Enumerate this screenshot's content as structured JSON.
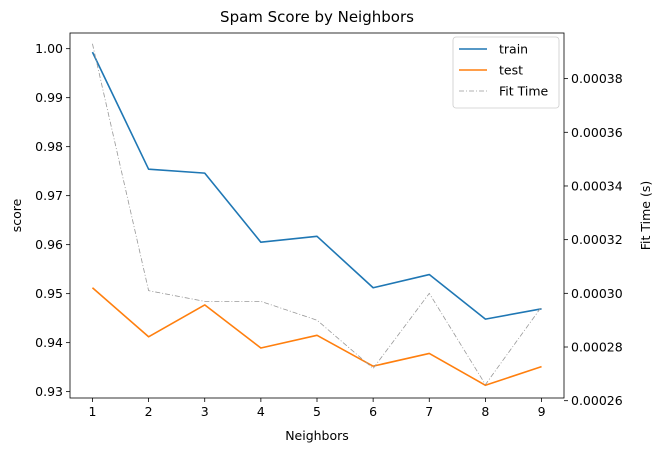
{
  "chart_data": {
    "type": "line",
    "title": "Spam Score by Neighbors",
    "xlabel": "Neighbors",
    "ylabel": "score",
    "y2label": "Fit Time (s)",
    "x": [
      1,
      2,
      3,
      4,
      5,
      6,
      7,
      8,
      9
    ],
    "xlim": [
      0.6,
      9.4
    ],
    "ylim": [
      0.9287,
      1.0032
    ],
    "y2lim": [
      0.000261,
      0.000397
    ],
    "xticks": [
      "1",
      "2",
      "3",
      "4",
      "5",
      "6",
      "7",
      "8",
      "9"
    ],
    "yticks": [
      0.93,
      0.94,
      0.95,
      0.96,
      0.97,
      0.98,
      0.99,
      1.0
    ],
    "ytick_labels": [
      "0.93",
      "0.94",
      "0.95",
      "0.96",
      "0.97",
      "0.98",
      "0.99",
      "1.00"
    ],
    "y2ticks": [
      0.00026,
      0.00028,
      0.0003,
      0.00032,
      0.00034,
      0.00036,
      0.00038
    ],
    "y2tick_labels": [
      "0.00026",
      "0.00028",
      "0.00030",
      "0.00032",
      "0.00034",
      "0.00036",
      "0.00038"
    ],
    "grid": false,
    "legend_position": "top-right",
    "series": [
      {
        "name": "train",
        "axis": "left",
        "color": "#1f77b4",
        "style": "solid",
        "values": [
          0.9993,
          0.9754,
          0.9746,
          0.9605,
          0.9617,
          0.9512,
          0.9539,
          0.9448,
          0.9469
        ]
      },
      {
        "name": "test",
        "axis": "left",
        "color": "#ff7f0e",
        "style": "solid",
        "values": [
          0.9512,
          0.9412,
          0.9477,
          0.9389,
          0.9415,
          0.9352,
          0.9378,
          0.9313,
          0.9351
        ]
      },
      {
        "name": "Fit Time",
        "axis": "right",
        "color": "#999999",
        "style": "dashdot",
        "values": [
          0.000393,
          0.000301,
          0.000297,
          0.000297,
          0.00029,
          0.000272,
          0.0003,
          0.000266,
          0.000295
        ]
      }
    ]
  }
}
